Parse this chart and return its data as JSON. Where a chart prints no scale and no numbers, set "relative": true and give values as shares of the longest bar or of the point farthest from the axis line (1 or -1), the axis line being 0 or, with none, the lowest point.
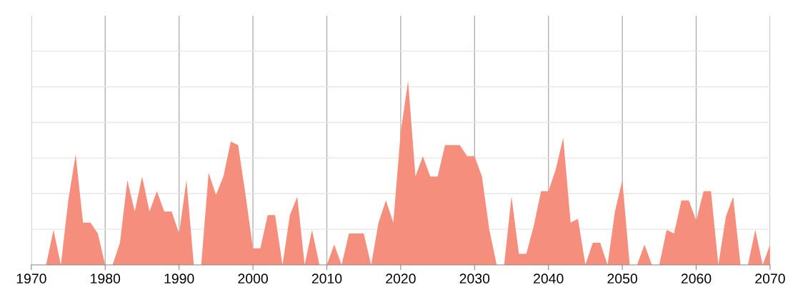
{
  "chart_data": {
    "type": "area",
    "relative": true,
    "color": "#f68e7e",
    "grid": true,
    "x": [
      1970,
      1971,
      1972,
      1973,
      1974,
      1975,
      1976,
      1977,
      1978,
      1979,
      1980,
      1981,
      1982,
      1983,
      1984,
      1985,
      1986,
      1987,
      1988,
      1989,
      1990,
      1991,
      1992,
      1993,
      1994,
      1995,
      1996,
      1997,
      1998,
      1999,
      2000,
      2001,
      2002,
      2003,
      2004,
      2005,
      2006,
      2007,
      2008,
      2009,
      2010,
      2011,
      2012,
      2013,
      2014,
      2015,
      2016,
      2017,
      2018,
      2019,
      2020,
      2021,
      2022,
      2023,
      2024,
      2025,
      2026,
      2027,
      2028,
      2029,
      2030,
      2031,
      2032,
      2033,
      2034,
      2035,
      2036,
      2037,
      2038,
      2039,
      2040,
      2041,
      2042,
      2043,
      2044,
      2045,
      2046,
      2047,
      2048,
      2049,
      2050,
      2051,
      2052,
      2053,
      2054,
      2055,
      2056,
      2057,
      2058,
      2059,
      2060,
      2061,
      2062,
      2063,
      2064,
      2065,
      2066,
      2067,
      2068,
      2069,
      2070
    ],
    "values": [
      0,
      0,
      0,
      0.19,
      0,
      0.35,
      0.6,
      0.23,
      0.23,
      0.17,
      0,
      0,
      0.12,
      0.46,
      0.29,
      0.48,
      0.29,
      0.4,
      0.29,
      0.29,
      0.17,
      0.46,
      0,
      0,
      0.5,
      0.38,
      0.48,
      0.67,
      0.65,
      0.38,
      0.09,
      0.09,
      0.27,
      0.27,
      0,
      0.27,
      0.37,
      0,
      0.19,
      0,
      0,
      0.11,
      0,
      0.17,
      0.17,
      0.17,
      0,
      0.23,
      0.35,
      0.23,
      0.72,
      1,
      0.48,
      0.59,
      0.48,
      0.48,
      0.65,
      0.65,
      0.65,
      0.59,
      0.59,
      0.48,
      0.19,
      0,
      0,
      0.37,
      0.06,
      0.06,
      0.21,
      0.4,
      0.4,
      0.52,
      0.69,
      0.23,
      0.25,
      0,
      0.12,
      0.12,
      0,
      0.29,
      0.46,
      0,
      0,
      0.11,
      0,
      0,
      0.19,
      0.17,
      0.35,
      0.35,
      0.24,
      0.4,
      0.4,
      0,
      0.26,
      0.37,
      0,
      0,
      0.19,
      0,
      0.11
    ],
    "xlim": [
      1970,
      2070
    ],
    "xticks": [
      1970,
      1980,
      1990,
      2000,
      2010,
      2020,
      2030,
      2040,
      2050,
      2060,
      2070
    ]
  }
}
